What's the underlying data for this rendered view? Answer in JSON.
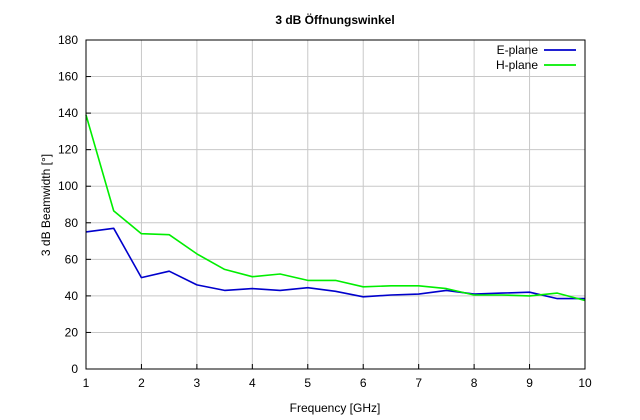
{
  "chart_data": {
    "type": "line",
    "title": "3 dB Öffnungswinkel",
    "xlabel": "Frequency [GHz]",
    "ylabel": "3 dB Beamwidth [°]",
    "xlim": [
      1,
      10
    ],
    "ylim": [
      0,
      180
    ],
    "grid": true,
    "legend": "top-right",
    "x_ticks": [
      1,
      2,
      3,
      4,
      5,
      6,
      7,
      8,
      9,
      10
    ],
    "y_ticks": [
      0,
      20,
      40,
      60,
      80,
      100,
      120,
      140,
      160,
      180
    ],
    "x": [
      1,
      1.5,
      2,
      2.5,
      3,
      3.5,
      4,
      4.5,
      5,
      5.5,
      6,
      6.5,
      7,
      7.5,
      8,
      8.5,
      9,
      9.5,
      10
    ],
    "series": [
      {
        "name": "E-plane",
        "color": "#0000cc",
        "values": [
          75,
          77,
          50,
          53.5,
          46,
          43,
          44,
          43,
          44.5,
          42.5,
          39.5,
          40.5,
          41,
          43,
          41,
          41.5,
          42,
          38.5,
          38.5
        ]
      },
      {
        "name": "H-plane",
        "color": "#00ee00",
        "values": [
          139,
          86.5,
          74,
          73.5,
          63,
          54.5,
          50.5,
          52,
          48.5,
          48.5,
          45,
          45.5,
          45.5,
          44,
          40.5,
          40.5,
          40,
          41.5,
          37.5
        ]
      }
    ]
  }
}
